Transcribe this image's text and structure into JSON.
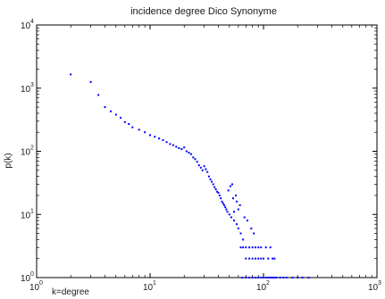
{
  "chart_data": {
    "type": "scatter",
    "title": "incidence degree Dico Synonyme",
    "xlabel": "k=degree",
    "ylabel": "p(k)",
    "x_scale": "log",
    "y_scale": "log",
    "xlim": [
      1,
      1000
    ],
    "ylim": [
      1,
      10000
    ],
    "x_ticks": [
      {
        "base": "10",
        "exp": "0"
      },
      {
        "base": "10",
        "exp": "1"
      },
      {
        "base": "10",
        "exp": "2"
      },
      {
        "base": "10",
        "exp": "3"
      }
    ],
    "y_ticks": [
      {
        "base": "10",
        "exp": "0"
      },
      {
        "base": "10",
        "exp": "1"
      },
      {
        "base": "10",
        "exp": "2"
      },
      {
        "base": "10",
        "exp": "3"
      },
      {
        "base": "10",
        "exp": "4"
      }
    ],
    "grid": false,
    "marker_color": "#0000ff",
    "points": [
      [
        2,
        1650
      ],
      [
        3,
        1250
      ],
      [
        3.5,
        780
      ],
      [
        4,
        500
      ],
      [
        4.5,
        430
      ],
      [
        5,
        380
      ],
      [
        5.5,
        340
      ],
      [
        6,
        290
      ],
      [
        6.5,
        270
      ],
      [
        7,
        240
      ],
      [
        8,
        220
      ],
      [
        9,
        200
      ],
      [
        10,
        180
      ],
      [
        11,
        170
      ],
      [
        12,
        160
      ],
      [
        13,
        150
      ],
      [
        14,
        140
      ],
      [
        15,
        130
      ],
      [
        16,
        125
      ],
      [
        17,
        118
      ],
      [
        18,
        112
      ],
      [
        19,
        108
      ],
      [
        20,
        115
      ],
      [
        21,
        100
      ],
      [
        22,
        95
      ],
      [
        23,
        90
      ],
      [
        24,
        80
      ],
      [
        25,
        75
      ],
      [
        26,
        68
      ],
      [
        27,
        60
      ],
      [
        28,
        55
      ],
      [
        29,
        50
      ],
      [
        30,
        58
      ],
      [
        31,
        52
      ],
      [
        32,
        47
      ],
      [
        33,
        40
      ],
      [
        34,
        36
      ],
      [
        35,
        33
      ],
      [
        36,
        30
      ],
      [
        37,
        27
      ],
      [
        38,
        25
      ],
      [
        39,
        23
      ],
      [
        40,
        22
      ],
      [
        41,
        20
      ],
      [
        42,
        18
      ],
      [
        43,
        16
      ],
      [
        44,
        15
      ],
      [
        45,
        14
      ],
      [
        46,
        13
      ],
      [
        47,
        12
      ],
      [
        48,
        11
      ],
      [
        50,
        10
      ],
      [
        52,
        9
      ],
      [
        55,
        8
      ],
      [
        58,
        7
      ],
      [
        60,
        6
      ],
      [
        63,
        5
      ],
      [
        66,
        4
      ],
      [
        70,
        3
      ],
      [
        75,
        2
      ],
      [
        80,
        2
      ],
      [
        85,
        3
      ],
      [
        90,
        2
      ],
      [
        95,
        2
      ],
      [
        100,
        2
      ],
      [
        110,
        2
      ],
      [
        120,
        2
      ],
      [
        125,
        2
      ],
      [
        63,
        3
      ],
      [
        66,
        3
      ],
      [
        70,
        2
      ],
      [
        75,
        3
      ],
      [
        80,
        3
      ],
      [
        85,
        2
      ],
      [
        90,
        3
      ],
      [
        95,
        3
      ],
      [
        105,
        3
      ],
      [
        115,
        3
      ],
      [
        65,
        1
      ],
      [
        70,
        1
      ],
      [
        75,
        1
      ],
      [
        80,
        1
      ],
      [
        85,
        1
      ],
      [
        90,
        1
      ],
      [
        95,
        1
      ],
      [
        100,
        1
      ],
      [
        105,
        1
      ],
      [
        110,
        1
      ],
      [
        115,
        1
      ],
      [
        120,
        1
      ],
      [
        125,
        1
      ],
      [
        130,
        1
      ],
      [
        140,
        1
      ],
      [
        150,
        1
      ],
      [
        160,
        1
      ],
      [
        180,
        1
      ],
      [
        200,
        1
      ],
      [
        220,
        1
      ],
      [
        250,
        1
      ],
      [
        60,
        12
      ],
      [
        62,
        14
      ],
      [
        58,
        16
      ],
      [
        54,
        18
      ],
      [
        57,
        20
      ],
      [
        49,
        24
      ],
      [
        51,
        28
      ],
      [
        53,
        30
      ],
      [
        55,
        11
      ],
      [
        68,
        9
      ],
      [
        72,
        8
      ],
      [
        78,
        6
      ],
      [
        82,
        5
      ]
    ]
  }
}
